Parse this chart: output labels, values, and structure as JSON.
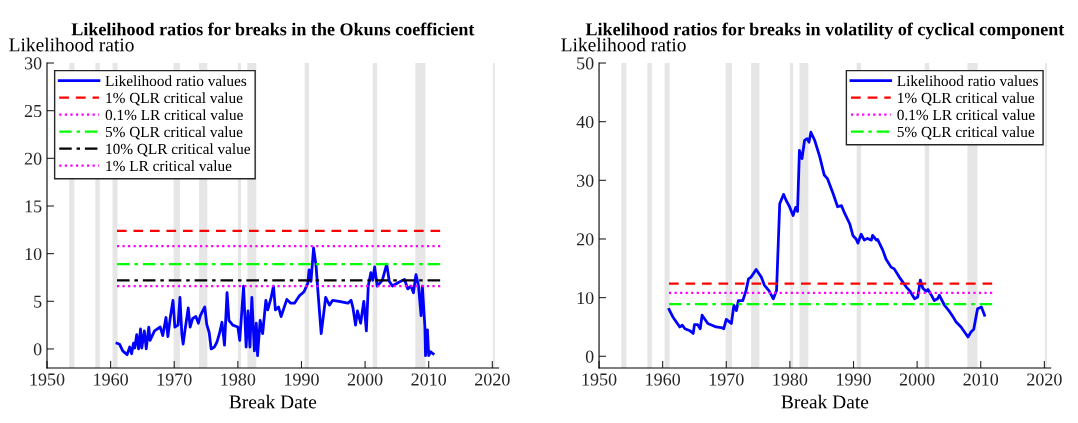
{
  "chart_data": [
    {
      "type": "line",
      "title": "Likelihood ratios for breaks in the Okuns coefficient",
      "xlabel": "Break Date",
      "ylabel": "Likelihood ratio",
      "xlim": [
        1950,
        2021
      ],
      "xticks": [
        1950,
        1960,
        1970,
        1980,
        1990,
        2000,
        2010,
        2020
      ],
      "ylim": [
        -2,
        30
      ],
      "yticks": [
        0,
        5,
        10,
        15,
        20,
        25,
        30
      ],
      "grid": false,
      "legend": "top left",
      "bands": [
        {
          "axis": "x",
          "from": 1953.5,
          "to": 1954.3,
          "color": "#e6e6e6"
        },
        {
          "axis": "x",
          "from": 1957.6,
          "to": 1958.3,
          "color": "#e6e6e6"
        },
        {
          "axis": "x",
          "from": 1960.3,
          "to": 1961.1,
          "color": "#e6e6e6"
        },
        {
          "axis": "x",
          "from": 1969.9,
          "to": 1970.9,
          "color": "#e6e6e6"
        },
        {
          "axis": "x",
          "from": 1973.9,
          "to": 1975.2,
          "color": "#e6e6e6"
        },
        {
          "axis": "x",
          "from": 1980.0,
          "to": 1980.5,
          "color": "#e6e6e6"
        },
        {
          "axis": "x",
          "from": 1981.5,
          "to": 1982.9,
          "color": "#e6e6e6"
        },
        {
          "axis": "x",
          "from": 1990.5,
          "to": 1991.2,
          "color": "#e6e6e6"
        },
        {
          "axis": "x",
          "from": 2001.2,
          "to": 2001.9,
          "color": "#e6e6e6"
        },
        {
          "axis": "x",
          "from": 2007.9,
          "to": 2009.5,
          "color": "#e6e6e6"
        },
        {
          "axis": "x",
          "from": 2020.1,
          "to": 2020.4,
          "color": "#e6e6e6"
        }
      ],
      "series": [
        {
          "name": "Likelihood ratio values",
          "color": "#0000ff",
          "line_style": "solid",
          "x": [
            1961.0,
            1961.4,
            1961.9,
            1962.6,
            1963.0,
            1963.3,
            1963.6,
            1963.8,
            1964.1,
            1964.4,
            1964.7,
            1964.9,
            1965.3,
            1965.6,
            1966.0,
            1966.2,
            1966.9,
            1967.8,
            1968.2,
            1968.7,
            1969.0,
            1969.4,
            1969.8,
            1970.1,
            1970.6,
            1970.9,
            1971.2,
            1971.4,
            1971.7,
            1972.2,
            1972.5,
            1972.9,
            1973.4,
            1973.8,
            1974.1,
            1974.8,
            1975.1,
            1975.5,
            1975.8,
            1976.3,
            1976.7,
            1977.1,
            1977.5,
            1977.9,
            1978.3,
            1978.6,
            1979.2,
            1980.0,
            1980.3,
            1980.9,
            1981.3,
            1981.6,
            1981.9,
            1982.2,
            1982.6,
            1982.9,
            1983.1,
            1983.5,
            1983.9,
            1984.4,
            1984.7,
            1985.2,
            1985.6,
            1985.9,
            1986.4,
            1986.8,
            1987.7,
            1988.3,
            1988.9,
            1989.7,
            1990.4,
            1991.0,
            1991.2,
            1991.5,
            1991.9,
            1992.3,
            1992.6,
            1993.1,
            1993.4,
            1993.8,
            1994.4,
            1994.9,
            1995.9,
            1997.3,
            1997.8,
            1998.1,
            1998.5,
            1998.8,
            1999.3,
            1999.8,
            2000.2,
            2000.5,
            2000.9,
            2001.2,
            2001.5,
            2001.9,
            2002.7,
            2003.4,
            2003.8,
            2004.3,
            2005.3,
            2006.2,
            2006.7,
            2007.2,
            2007.6,
            2008.0,
            2008.4,
            2008.8,
            2009.0,
            2009.4,
            2009.5,
            2009.8,
            2010.0,
            2010.3,
            2010.7
          ],
          "values": [
            0.6,
            0.5,
            -0.2,
            -0.6,
            0.2,
            -0.5,
            0.6,
            0.1,
            1.5,
            0,
            2.1,
            0.1,
            1.9,
            0,
            2.3,
            0.9,
            1.9,
            2.3,
            1.4,
            3.3,
            1.3,
            3.4,
            5.1,
            2.3,
            2.5,
            5.4,
            1.5,
            0.5,
            2.0,
            4.3,
            2.3,
            3.2,
            3.4,
            2.7,
            3.5,
            4.4,
            2.6,
            1.7,
            0,
            0.2,
            0.7,
            1.6,
            2.8,
            0.4,
            5.9,
            3.0,
            2.5,
            2.3,
            0.9,
            6.6,
            0.2,
            4.0,
            0.2,
            5.4,
            -0.2,
            2.7,
            -0.7,
            3.0,
            1.6,
            5.1,
            4.1,
            5.3,
            6.6,
            4.1,
            4.4,
            3.4,
            5.2,
            4.8,
            4.8,
            5.6,
            6.0,
            6.9,
            8.3,
            7.1,
            10.6,
            8.7,
            5.9,
            1.6,
            3.2,
            5.4,
            4.6,
            5.1,
            5.0,
            4.8,
            5.1,
            4.3,
            2.5,
            4.0,
            2.7,
            5.0,
            1.9,
            6.6,
            8.0,
            7.2,
            8.6,
            6.6,
            7.2,
            8.9,
            7.1,
            6.6,
            7.0,
            7.3,
            6.3,
            6.6,
            5.9,
            7.8,
            6.6,
            3.5,
            6.6,
            2.3,
            -0.7,
            2.0,
            -0.7,
            -0.3,
            -0.5
          ]
        },
        {
          "name": "1% QLR critical value",
          "color": "#ff0000",
          "line_style": "dashed",
          "x": [
            1961.0,
            2011.8
          ],
          "values": [
            12.4,
            12.4
          ]
        },
        {
          "name": "0.1% LR critical value",
          "color": "#ff00ff",
          "line_style": "dotted",
          "x": [
            1961.0,
            2011.8
          ],
          "values": [
            10.8,
            10.8
          ]
        },
        {
          "name": "5% QLR critical value",
          "color": "#00ff00",
          "line_style": "dashdot",
          "x": [
            1961.0,
            2011.8
          ],
          "values": [
            8.9,
            8.9
          ]
        },
        {
          "name": "10% QLR critical value",
          "color": "#000000",
          "line_style": "dashdot",
          "x": [
            1961.0,
            2011.8
          ],
          "values": [
            7.2,
            7.2
          ]
        },
        {
          "name": "1% LR critical value",
          "color": "#ff00ff",
          "line_style": "dotted",
          "x": [
            1961.0,
            2011.8
          ],
          "values": [
            6.6,
            6.6
          ]
        }
      ]
    },
    {
      "type": "line",
      "title": "Likelihood ratios for breaks in volatility of cyclical component",
      "xlabel": "Break Date",
      "ylabel": "Likelihood ratio",
      "xlim": [
        1950,
        2021
      ],
      "xticks": [
        1950,
        1960,
        1970,
        1980,
        1990,
        2000,
        2010,
        2020
      ],
      "ylim": [
        -2,
        50
      ],
      "yticks": [
        0,
        10,
        20,
        30,
        40,
        50
      ],
      "grid": false,
      "legend": "top right",
      "bands": [
        {
          "axis": "x",
          "from": 1953.5,
          "to": 1954.3,
          "color": "#e6e6e6"
        },
        {
          "axis": "x",
          "from": 1957.6,
          "to": 1958.3,
          "color": "#e6e6e6"
        },
        {
          "axis": "x",
          "from": 1960.3,
          "to": 1961.1,
          "color": "#e6e6e6"
        },
        {
          "axis": "x",
          "from": 1969.9,
          "to": 1970.9,
          "color": "#e6e6e6"
        },
        {
          "axis": "x",
          "from": 1973.9,
          "to": 1975.2,
          "color": "#e6e6e6"
        },
        {
          "axis": "x",
          "from": 1980.0,
          "to": 1980.5,
          "color": "#e6e6e6"
        },
        {
          "axis": "x",
          "from": 1981.5,
          "to": 1982.9,
          "color": "#e6e6e6"
        },
        {
          "axis": "x",
          "from": 1990.5,
          "to": 1991.2,
          "color": "#e6e6e6"
        },
        {
          "axis": "x",
          "from": 2001.2,
          "to": 2001.9,
          "color": "#e6e6e6"
        },
        {
          "axis": "x",
          "from": 2007.9,
          "to": 2009.5,
          "color": "#e6e6e6"
        },
        {
          "axis": "x",
          "from": 2020.1,
          "to": 2020.4,
          "color": "#e6e6e6"
        }
      ],
      "series": [
        {
          "name": "Likelihood ratio values",
          "color": "#0000ff",
          "line_style": "solid",
          "x": [
            1961.0,
            1961.6,
            1962.7,
            1963.1,
            1963.5,
            1964.2,
            1964.8,
            1965.0,
            1965.5,
            1965.9,
            1966.2,
            1967.1,
            1968.4,
            1969.2,
            1969.6,
            1970.0,
            1970.8,
            1971.2,
            1971.6,
            1971.9,
            1972.6,
            1973.1,
            1973.5,
            1973.9,
            1974.7,
            1975.5,
            1976.0,
            1976.7,
            1977.4,
            1977.9,
            1978.4,
            1979.0,
            1979.4,
            1979.9,
            1980.5,
            1980.9,
            1981.2,
            1981.5,
            1981.9,
            1982.3,
            1982.7,
            1983.0,
            1983.3,
            1983.9,
            1984.7,
            1985.4,
            1985.9,
            1986.8,
            1987.5,
            1988.1,
            1988.6,
            1989.4,
            1989.9,
            1990.4,
            1990.7,
            1991.2,
            1991.7,
            1992.2,
            1992.8,
            1993.0,
            1993.6,
            1993.8,
            1994.6,
            1995.1,
            1995.9,
            1996.4,
            1997.2,
            1998.3,
            1998.8,
            1999.6,
            2000.1,
            2000.5,
            2000.9,
            2001.4,
            2001.7,
            2002.2,
            2002.7,
            2003.2,
            2003.5,
            2004.3,
            2005.1,
            2005.6,
            2006.1,
            2006.9,
            2008.0,
            2008.5,
            2008.9,
            2009.2,
            2009.5,
            2010.1,
            2010.6
          ],
          "values": [
            8.0,
            6.7,
            5.0,
            5.3,
            4.7,
            4.4,
            3.9,
            5.4,
            5.4,
            4.7,
            7.0,
            5.6,
            5.0,
            4.9,
            4.7,
            6.3,
            5.6,
            8.7,
            7.8,
            9.5,
            9.5,
            11.2,
            13.2,
            13.5,
            14.8,
            13.5,
            12.1,
            11.2,
            9.8,
            11.2,
            26.0,
            27.6,
            26.6,
            25.6,
            24.0,
            25.4,
            24.7,
            35.1,
            33.7,
            36.8,
            37.1,
            36.5,
            38.2,
            36.8,
            34.0,
            30.9,
            30.3,
            27.7,
            25.5,
            25.7,
            24.4,
            22.6,
            20.6,
            20.0,
            19.3,
            20.8,
            19.8,
            20.1,
            19.8,
            20.6,
            19.8,
            19.9,
            18.1,
            16.6,
            15.2,
            14.9,
            13.5,
            11.8,
            11.2,
            9.8,
            10.1,
            13.0,
            11.6,
            11.1,
            11.4,
            10.5,
            9.5,
            9.8,
            10.4,
            8.7,
            7.6,
            6.8,
            5.9,
            5.0,
            3.3,
            4.2,
            4.6,
            6.4,
            8.1,
            8.4,
            7.0
          ]
        },
        {
          "name": "1% QLR critical value",
          "color": "#ff0000",
          "line_style": "dashed",
          "x": [
            1961.0,
            2011.8
          ],
          "values": [
            12.4,
            12.4
          ]
        },
        {
          "name": "0.1% LR critical value",
          "color": "#ff00ff",
          "line_style": "dotted",
          "x": [
            1961.0,
            2011.8
          ],
          "values": [
            10.8,
            10.8
          ]
        },
        {
          "name": "5% QLR critical value",
          "color": "#00ff00",
          "line_style": "dashdot",
          "x": [
            1961.0,
            2011.8
          ],
          "values": [
            8.9,
            8.9
          ]
        }
      ]
    }
  ]
}
